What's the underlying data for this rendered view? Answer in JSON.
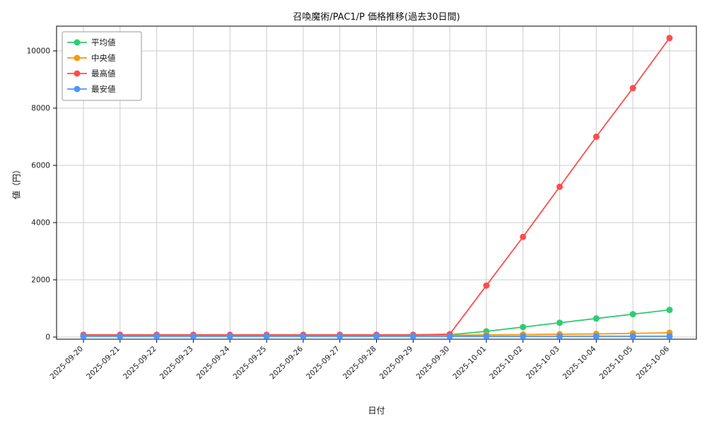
{
  "chart_data": {
    "type": "line",
    "title": "召喚魔術/PAC1/P 価格推移(過去30日間)",
    "xlabel": "日付",
    "ylabel": "値（円）",
    "ylim": [
      0,
      10000
    ],
    "yticks": [
      0,
      2000,
      4000,
      6000,
      8000,
      10000
    ],
    "grid": true,
    "legend_position": "upper left",
    "categories": [
      "2025-09-20",
      "2025-09-21",
      "2025-09-22",
      "2025-09-23",
      "2025-09-24",
      "2025-09-25",
      "2025-09-26",
      "2025-09-27",
      "2025-09-28",
      "2025-09-29",
      "2025-09-30",
      "2025-10-01",
      "2025-10-02",
      "2025-10-03",
      "2025-10-04",
      "2025-10-05",
      "2025-10-06"
    ],
    "series": [
      {
        "name": "平均値",
        "color": "#2ecc71",
        "values": [
          60,
          60,
          60,
          60,
          60,
          60,
          60,
          60,
          60,
          60,
          80,
          200,
          350,
          500,
          650,
          800,
          950
        ]
      },
      {
        "name": "中央値",
        "color": "#f39c12",
        "values": [
          55,
          55,
          55,
          55,
          55,
          55,
          55,
          55,
          55,
          55,
          60,
          80,
          90,
          100,
          110,
          130,
          150
        ]
      },
      {
        "name": "最高値",
        "color": "#ff4c4c",
        "values": [
          80,
          80,
          80,
          80,
          80,
          80,
          80,
          80,
          80,
          80,
          100,
          1800,
          3500,
          5250,
          7000,
          8700,
          10450
        ]
      },
      {
        "name": "最安値",
        "color": "#4d94ff",
        "values": [
          30,
          30,
          30,
          30,
          30,
          30,
          30,
          30,
          30,
          30,
          30,
          30,
          30,
          30,
          30,
          30,
          30
        ]
      }
    ],
    "colors": {
      "grid": "#cccccc",
      "axis_border": "#000000",
      "legend_border": "#999999",
      "legend_bg": "#ffffff"
    }
  }
}
